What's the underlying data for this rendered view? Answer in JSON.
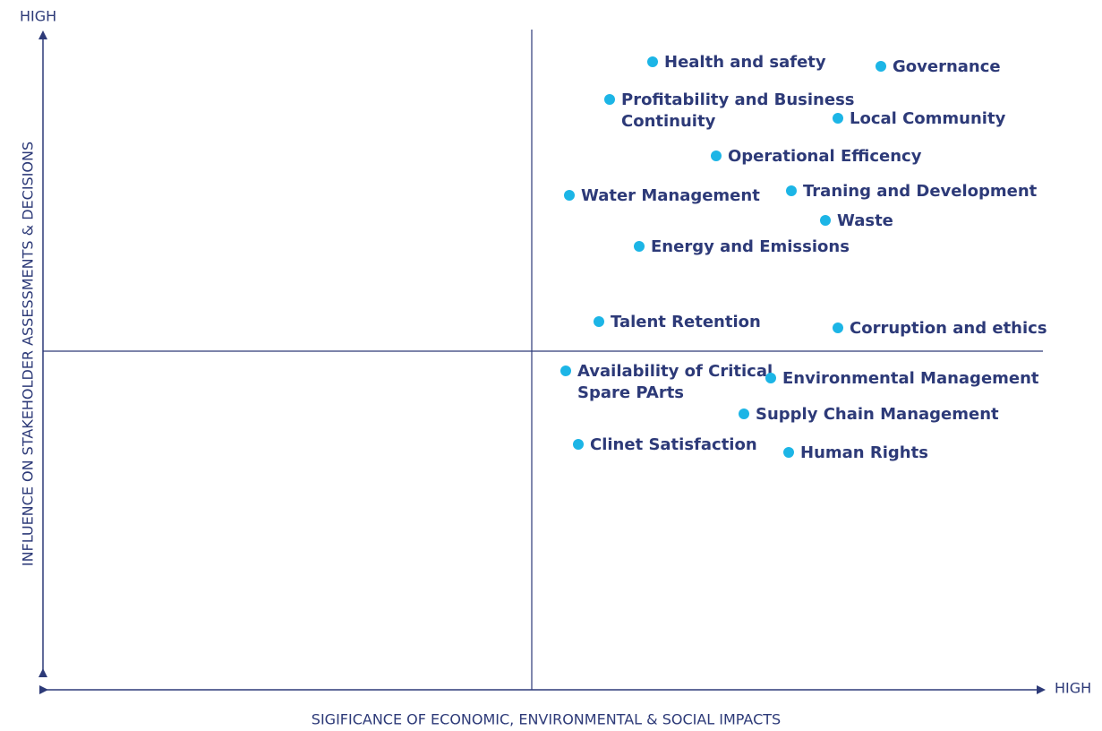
{
  "axes": {
    "y_high": "HIGH",
    "x_high": "HIGH",
    "y_label": "INFLUENCE ON STAKEHOLDER ASSESSMENTS & DECISIONS",
    "x_label": "SIGIFICANCE OF ECONOMIC, ENVIRONMENTAL & SOCIAL IMPACTS"
  },
  "nodes": [
    {
      "lines": [
        "Health and safety"
      ]
    },
    {
      "lines": [
        "Governance"
      ]
    },
    {
      "lines": [
        "Profitability and Business",
        "Continuity"
      ]
    },
    {
      "lines": [
        "Local Community"
      ]
    },
    {
      "lines": [
        "Operational Efficency"
      ]
    },
    {
      "lines": [
        "Water Management"
      ]
    },
    {
      "lines": [
        "Traning and Development"
      ]
    },
    {
      "lines": [
        "Waste"
      ]
    },
    {
      "lines": [
        "Energy and Emissions"
      ]
    },
    {
      "lines": [
        "Talent Retention"
      ]
    },
    {
      "lines": [
        "Corruption and ethics"
      ]
    },
    {
      "lines": [
        "Availability of Critical",
        "Spare PArts"
      ]
    },
    {
      "lines": [
        "Environmental Management"
      ]
    },
    {
      "lines": [
        "Supply Chain Management"
      ]
    },
    {
      "lines": [
        "Clinet Satisfaction"
      ]
    },
    {
      "lines": [
        "Human Rights"
      ]
    }
  ]
}
